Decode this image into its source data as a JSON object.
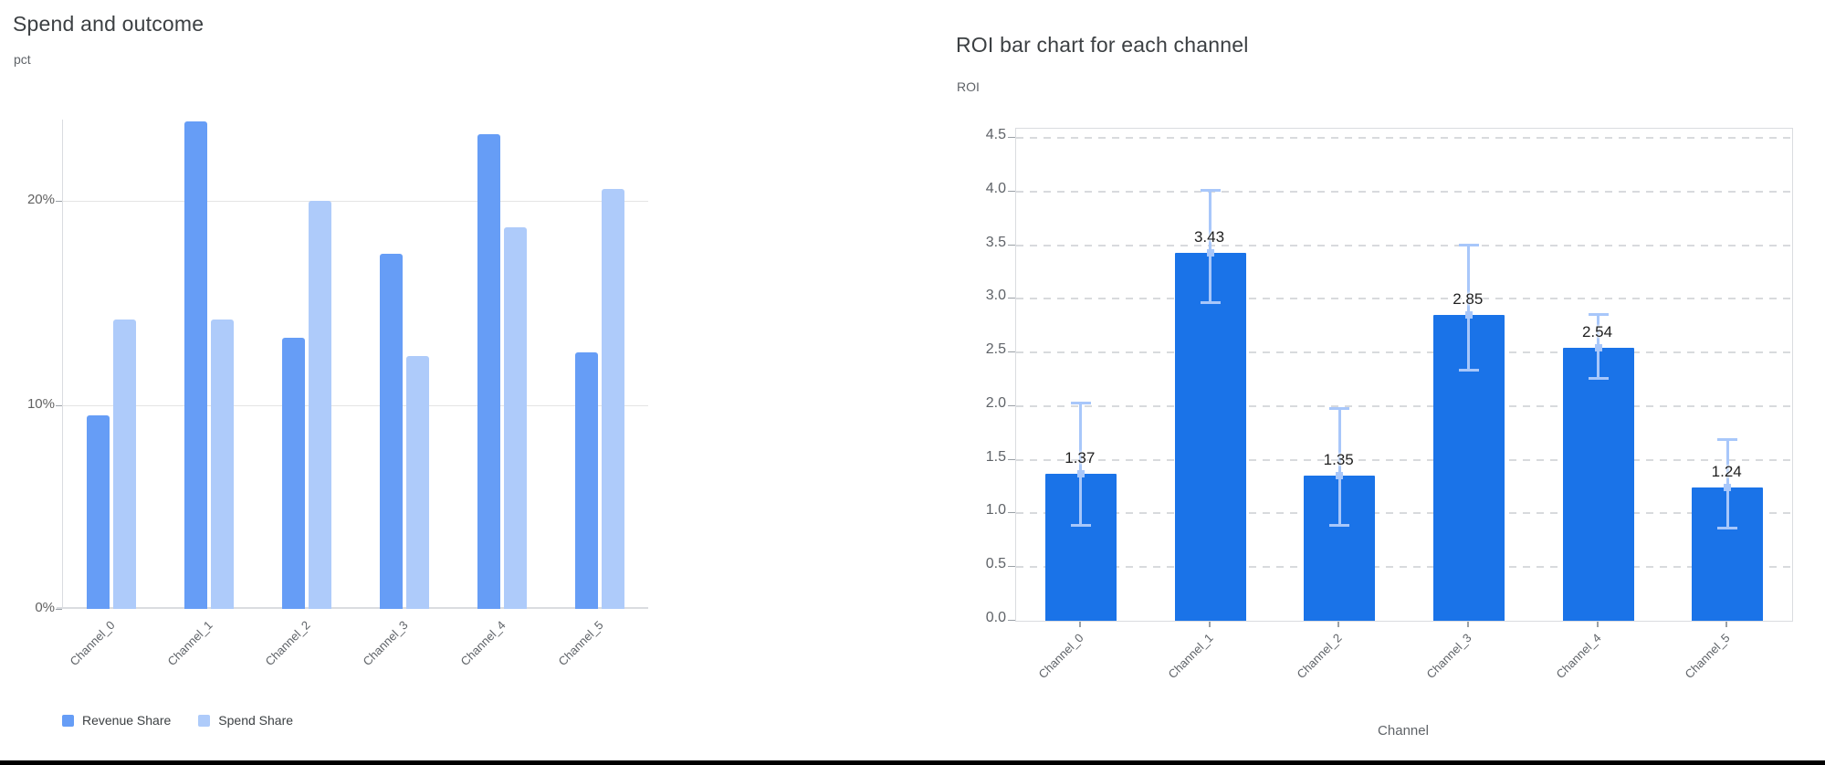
{
  "chart_data": [
    {
      "id": "spend_and_outcome",
      "type": "bar",
      "title": "Spend and outcome",
      "ylabel": "pct",
      "xlabel": "",
      "categories": [
        "Channel_0",
        "Channel_1",
        "Channel_2",
        "Channel_3",
        "Channel_4",
        "Channel_5"
      ],
      "series": [
        {
          "name": "Revenue Share",
          "color": "#669DF6",
          "values": [
            9.5,
            23.9,
            13.3,
            17.4,
            23.3,
            12.6
          ]
        },
        {
          "name": "Spend Share",
          "color": "#AECBFA",
          "values": [
            14.2,
            14.2,
            20.0,
            12.4,
            18.7,
            20.6
          ]
        }
      ],
      "y_ticks": [
        {
          "value": 0,
          "label": "0%"
        },
        {
          "value": 10,
          "label": "10%"
        },
        {
          "value": 20,
          "label": "20%"
        }
      ],
      "ylim": [
        0,
        24
      ],
      "grid": "solid-horizontal",
      "legend_position": "bottom"
    },
    {
      "id": "roi_per_channel",
      "type": "bar",
      "title": "ROI bar chart for each channel",
      "ylabel": "ROI",
      "xlabel": "Channel",
      "categories": [
        "Channel_0",
        "Channel_1",
        "Channel_2",
        "Channel_3",
        "Channel_4",
        "Channel_5"
      ],
      "series": [
        {
          "name": "ROI",
          "color": "#1A73E8",
          "values": [
            1.37,
            3.43,
            1.35,
            2.85,
            2.54,
            1.24
          ]
        }
      ],
      "data_labels": [
        "1.37",
        "3.43",
        "1.35",
        "2.85",
        "2.54",
        "1.24"
      ],
      "error_bars": {
        "color": "#A8C7FA",
        "low": [
          0.88,
          2.95,
          0.88,
          2.32,
          2.25,
          0.85
        ],
        "high": [
          2.04,
          4.02,
          1.99,
          3.51,
          2.87,
          1.7
        ]
      },
      "y_ticks": [
        {
          "value": 0.0,
          "label": "0.0"
        },
        {
          "value": 0.5,
          "label": "0.5"
        },
        {
          "value": 1.0,
          "label": "1.0"
        },
        {
          "value": 1.5,
          "label": "1.5"
        },
        {
          "value": 2.0,
          "label": "2.0"
        },
        {
          "value": 2.5,
          "label": "2.5"
        },
        {
          "value": 3.0,
          "label": "3.0"
        },
        {
          "value": 3.5,
          "label": "3.5"
        },
        {
          "value": 4.0,
          "label": "4.0"
        },
        {
          "value": 4.5,
          "label": "4.5"
        }
      ],
      "ylim": [
        0,
        4.5
      ],
      "grid": "dashed-horizontal",
      "legend_position": "none"
    }
  ]
}
